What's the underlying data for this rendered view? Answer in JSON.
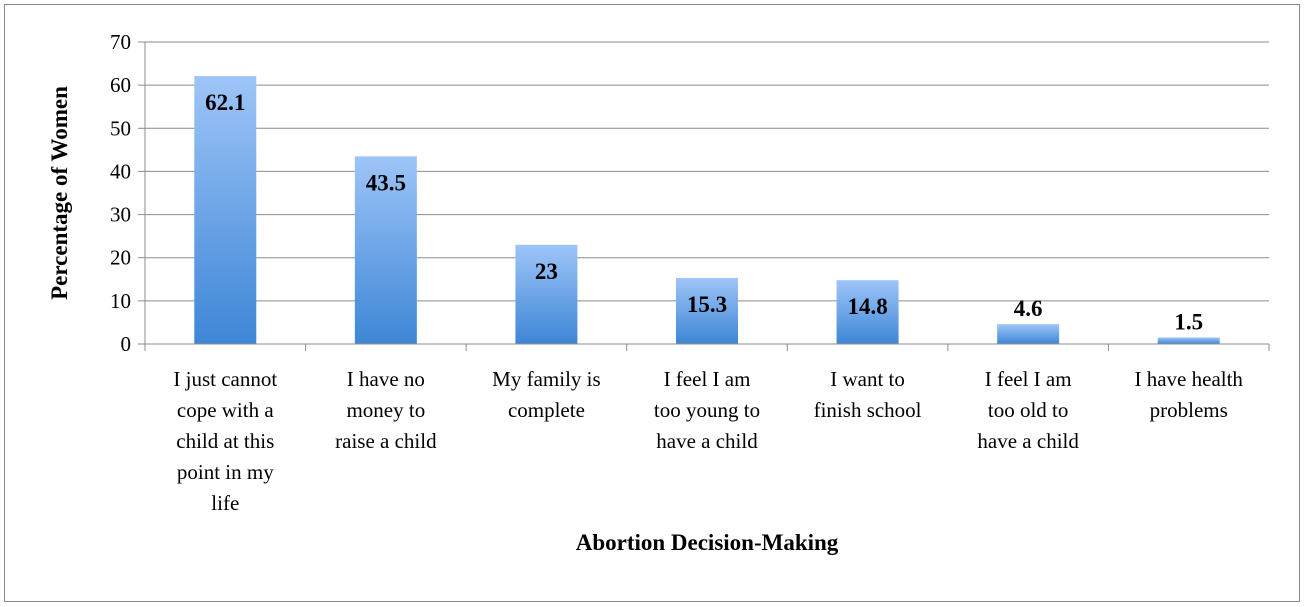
{
  "chart_data": {
    "type": "bar",
    "title": "",
    "xlabel": "Abortion Decision-Making",
    "ylabel": "Percentage of Women",
    "ylim": [
      0,
      70
    ],
    "ytick_step": 10,
    "yticks": [
      "0",
      "10",
      "20",
      "30",
      "40",
      "50",
      "60",
      "70"
    ],
    "grid": true,
    "legend": "none",
    "categories": [
      "I just cannot cope with a child at this point in my life",
      "I have no money to raise a child",
      "My family is complete",
      "I feel I am too young to have a child",
      "I want to finish school",
      "I feel I am too old to have a child",
      "I have health problems"
    ],
    "category_label_lines": [
      [
        "I just cannot",
        "cope with a",
        "child at this",
        "point in my",
        "life"
      ],
      [
        "I have no",
        "money to",
        "raise a child"
      ],
      [
        "My family is",
        "complete"
      ],
      [
        "I feel I am",
        "too young to",
        "have a child"
      ],
      [
        "I want to",
        "finish school"
      ],
      [
        "I feel I am",
        "too old to",
        "have a child"
      ],
      [
        "I have health",
        "problems"
      ]
    ],
    "values": [
      62.1,
      43.5,
      23,
      15.3,
      14.8,
      4.6,
      1.5
    ],
    "data_labels": [
      "62.1",
      "43.5",
      "23",
      "15.3",
      "14.8",
      "4.6",
      "1.5"
    ],
    "colors": {
      "bar_top": "#9ec5f8",
      "bar_bottom": "#3e86d6",
      "grid": "#8c8c8c",
      "axis": "#8c8c8c"
    }
  }
}
